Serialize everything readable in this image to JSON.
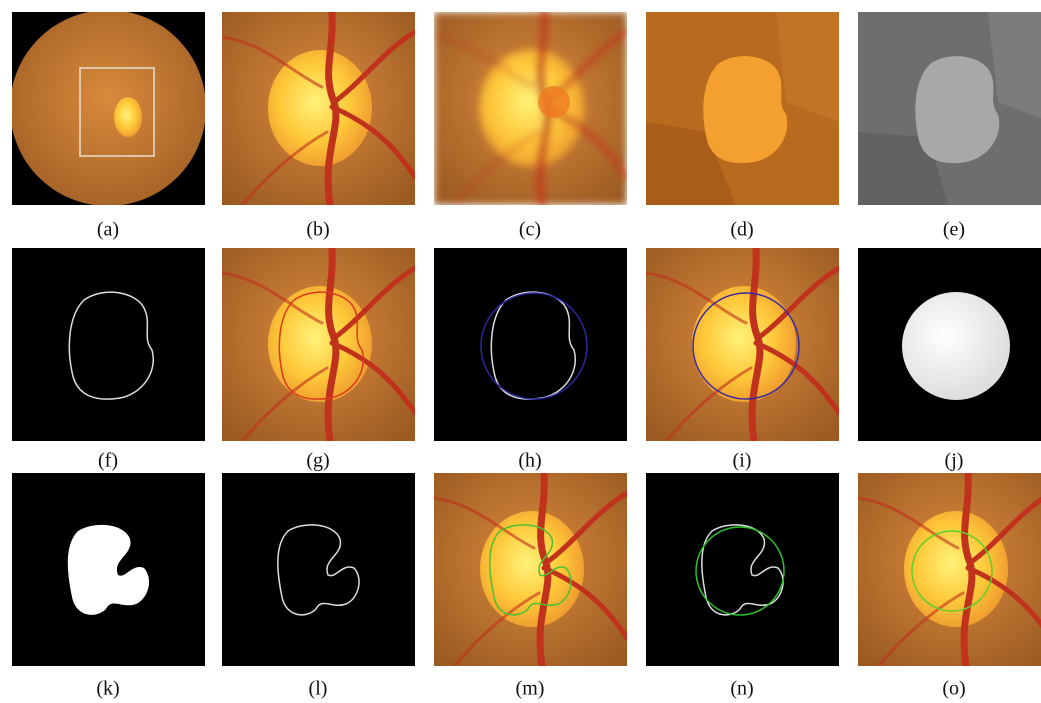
{
  "panels": [
    {
      "label": "(a)"
    },
    {
      "label": "(b)"
    },
    {
      "label": "(c)"
    },
    {
      "label": "(d)"
    },
    {
      "label": "(e)"
    },
    {
      "label": "(f)"
    },
    {
      "label": "(g)"
    },
    {
      "label": "(h)"
    },
    {
      "label": "(i)"
    },
    {
      "label": "(j)"
    },
    {
      "label": "(k)"
    },
    {
      "label": "(l)"
    },
    {
      "label": "(m)"
    },
    {
      "label": "(n)"
    },
    {
      "label": "(o)"
    }
  ]
}
